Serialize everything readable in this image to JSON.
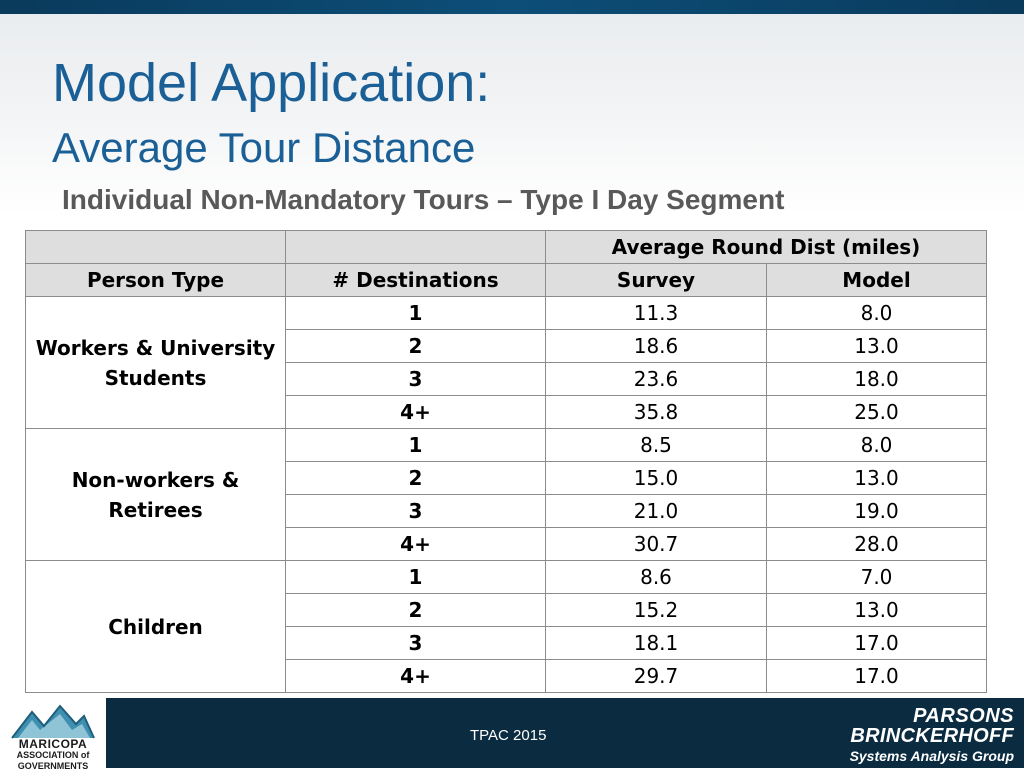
{
  "slide": {
    "title": "Model Application:",
    "subtitle": "Average Tour Distance",
    "section_heading": "Individual Non-Mandatory Tours – Type I Day Segment"
  },
  "table": {
    "super_header": "Average Round Dist (miles)",
    "headers": {
      "person_type": "Person Type",
      "destinations": "# Destinations",
      "survey": "Survey",
      "model": "Model"
    },
    "groups": [
      {
        "label_lines": [
          "Workers & University",
          "Students"
        ],
        "rows": [
          {
            "dest": "1",
            "survey": "11.3",
            "model": "8.0"
          },
          {
            "dest": "2",
            "survey": "18.6",
            "model": "13.0"
          },
          {
            "dest": "3",
            "survey": "23.6",
            "model": "18.0"
          },
          {
            "dest": "4+",
            "survey": "35.8",
            "model": "25.0"
          }
        ]
      },
      {
        "label_lines": [
          "Non-workers & Retirees"
        ],
        "rows": [
          {
            "dest": "1",
            "survey": "8.5",
            "model": "8.0"
          },
          {
            "dest": "2",
            "survey": "15.0",
            "model": "13.0"
          },
          {
            "dest": "3",
            "survey": "21.0",
            "model": "19.0"
          },
          {
            "dest": "4+",
            "survey": "30.7",
            "model": "28.0"
          }
        ]
      },
      {
        "label_lines": [
          "Children"
        ],
        "rows": [
          {
            "dest": "1",
            "survey": "8.6",
            "model": "7.0"
          },
          {
            "dest": "2",
            "survey": "15.2",
            "model": "13.0"
          },
          {
            "dest": "3",
            "survey": "18.1",
            "model": "17.0"
          },
          {
            "dest": "4+",
            "survey": "29.7",
            "model": "17.0"
          }
        ]
      }
    ]
  },
  "footer": {
    "center_text": "TPAC 2015",
    "logo_lines": [
      "MARICOPA",
      "ASSOCIATION of",
      "GOVERNMENTS"
    ],
    "brand_lines": [
      "PARSONS",
      "BRINCKERHOFF",
      "Systems Analysis Group"
    ],
    "logo_icon": "mountain-logo-icon"
  },
  "colors": {
    "title": "#1a5f96",
    "heading_gray": "#595959",
    "header_fill": "#dedede",
    "footer_bg": "#0b2b40",
    "top_band": "#0c4e78"
  }
}
